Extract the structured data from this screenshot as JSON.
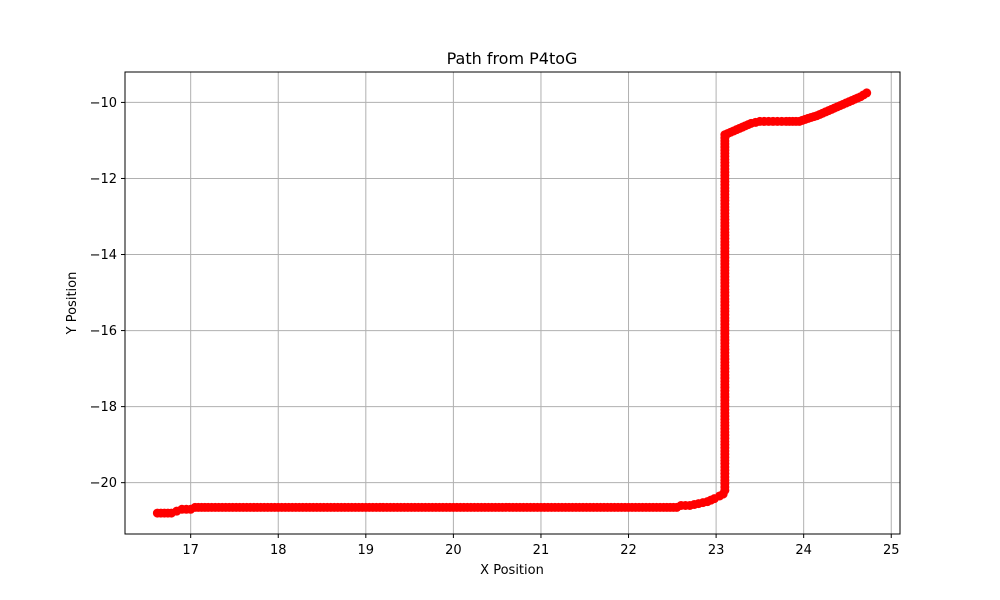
{
  "chart_data": {
    "type": "scatter",
    "title": "Path from P4toG",
    "xlabel": "X Position",
    "ylabel": "Y Position",
    "xlim": [
      16.25,
      25.1
    ],
    "ylim": [
      -21.35,
      -9.2
    ],
    "xticks": [
      17,
      18,
      19,
      20,
      21,
      22,
      23,
      24,
      25
    ],
    "yticks": [
      -20,
      -18,
      -16,
      -14,
      -12,
      -10
    ],
    "grid": true,
    "marker_color": "#ff0000",
    "series": [
      {
        "points": [
          [
            16.62,
            -20.8
          ],
          [
            16.7,
            -20.8
          ],
          [
            16.78,
            -20.8
          ],
          [
            16.84,
            -20.75
          ],
          [
            16.9,
            -20.7
          ],
          [
            17.0,
            -20.7
          ],
          [
            17.05,
            -20.65
          ],
          [
            17.2,
            -20.65
          ],
          [
            17.4,
            -20.65
          ],
          [
            17.6,
            -20.65
          ],
          [
            17.8,
            -20.65
          ],
          [
            18.0,
            -20.65
          ],
          [
            18.2,
            -20.65
          ],
          [
            18.4,
            -20.65
          ],
          [
            18.6,
            -20.65
          ],
          [
            18.8,
            -20.65
          ],
          [
            19.0,
            -20.65
          ],
          [
            19.2,
            -20.65
          ],
          [
            19.4,
            -20.65
          ],
          [
            19.6,
            -20.65
          ],
          [
            19.8,
            -20.65
          ],
          [
            20.0,
            -20.65
          ],
          [
            20.2,
            -20.65
          ],
          [
            20.4,
            -20.65
          ],
          [
            20.6,
            -20.65
          ],
          [
            20.8,
            -20.65
          ],
          [
            21.0,
            -20.65
          ],
          [
            21.2,
            -20.65
          ],
          [
            21.4,
            -20.65
          ],
          [
            21.6,
            -20.65
          ],
          [
            21.8,
            -20.65
          ],
          [
            22.0,
            -20.65
          ],
          [
            22.2,
            -20.65
          ],
          [
            22.4,
            -20.65
          ],
          [
            22.55,
            -20.65
          ],
          [
            22.6,
            -20.6
          ],
          [
            22.7,
            -20.6
          ],
          [
            22.8,
            -20.55
          ],
          [
            22.9,
            -20.5
          ],
          [
            22.98,
            -20.42
          ],
          [
            23.04,
            -20.35
          ],
          [
            23.08,
            -20.3
          ],
          [
            23.1,
            -20.2
          ],
          [
            23.1,
            -19.5
          ],
          [
            23.1,
            -18.5
          ],
          [
            23.1,
            -17.5
          ],
          [
            23.1,
            -16.5
          ],
          [
            23.1,
            -15.5
          ],
          [
            23.1,
            -14.5
          ],
          [
            23.1,
            -13.5
          ],
          [
            23.1,
            -12.5
          ],
          [
            23.1,
            -11.5
          ],
          [
            23.1,
            -10.85
          ],
          [
            23.2,
            -10.75
          ],
          [
            23.3,
            -10.65
          ],
          [
            23.4,
            -10.55
          ],
          [
            23.5,
            -10.5
          ],
          [
            23.6,
            -10.5
          ],
          [
            23.7,
            -10.5
          ],
          [
            23.8,
            -10.5
          ],
          [
            23.95,
            -10.5
          ],
          [
            24.05,
            -10.42
          ],
          [
            24.15,
            -10.35
          ],
          [
            24.25,
            -10.25
          ],
          [
            24.35,
            -10.15
          ],
          [
            24.45,
            -10.05
          ],
          [
            24.55,
            -9.95
          ],
          [
            24.65,
            -9.85
          ],
          [
            24.72,
            -9.75
          ]
        ]
      }
    ]
  }
}
